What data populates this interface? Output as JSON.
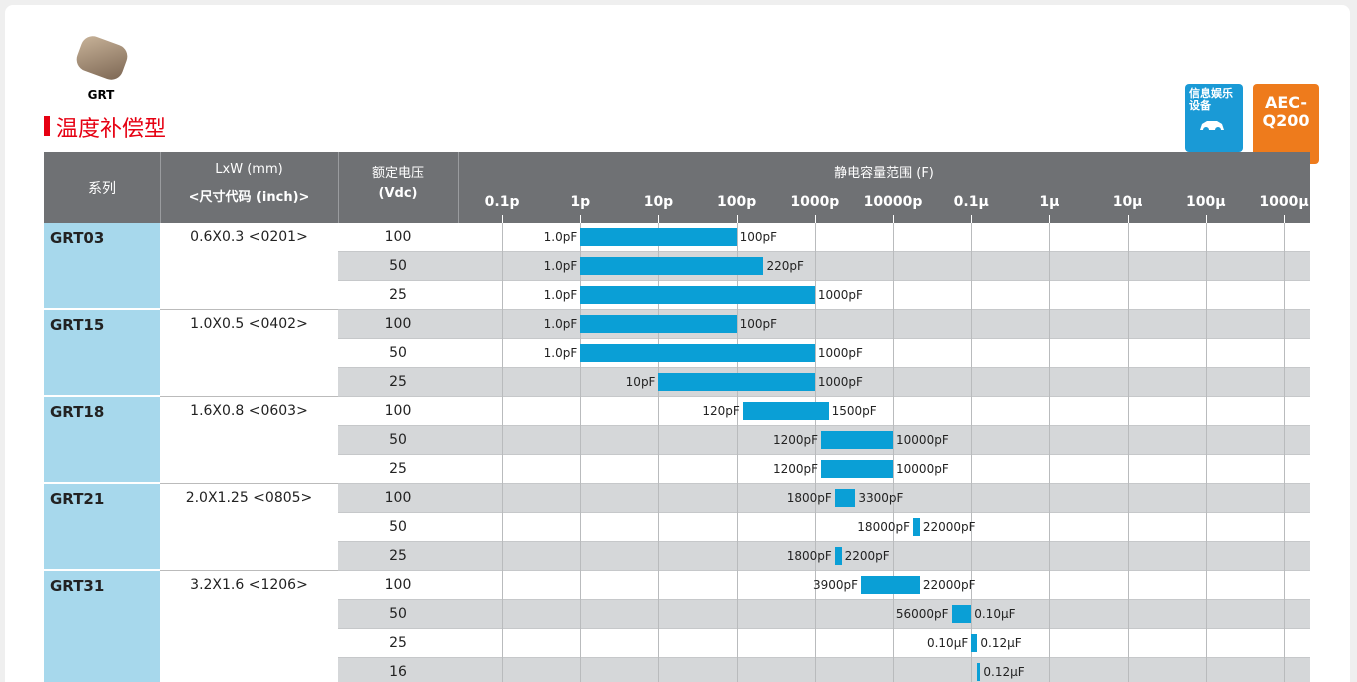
{
  "product": {
    "name": "GRT"
  },
  "title": "温度补偿型",
  "badges": [
    {
      "lines": [
        "信息娱乐",
        "设备"
      ]
    },
    {
      "lines": [
        "AEC-",
        "Q200"
      ]
    }
  ],
  "table": {
    "headers": {
      "series": "系列",
      "size": [
        "LxW (mm)",
        "<尺寸代码 (inch)>"
      ],
      "voltage": [
        "额定电压",
        "(Vdc)"
      ],
      "capacitance": "静电容量范围 (F)"
    },
    "groups": [
      {
        "series": "GRT03",
        "size": "0.6X0.3 <0201>",
        "rows": [
          {
            "voltage": 100,
            "min": 1,
            "max": 100,
            "min_label": "1.0pF",
            "max_label": "100pF"
          },
          {
            "voltage": 50,
            "min": 1,
            "max": 220,
            "min_label": "1.0pF",
            "max_label": "220pF"
          },
          {
            "voltage": 25,
            "min": 1,
            "max": 1000,
            "min_label": "1.0pF",
            "max_label": "1000pF"
          }
        ]
      },
      {
        "series": "GRT15",
        "size": "1.0X0.5 <0402>",
        "rows": [
          {
            "voltage": 100,
            "min": 1,
            "max": 100,
            "min_label": "1.0pF",
            "max_label": "100pF"
          },
          {
            "voltage": 50,
            "min": 1,
            "max": 1000,
            "min_label": "1.0pF",
            "max_label": "1000pF"
          },
          {
            "voltage": 25,
            "min": 10,
            "max": 1000,
            "min_label": "10pF",
            "max_label": "1000pF"
          }
        ]
      },
      {
        "series": "GRT18",
        "size": "1.6X0.8 <0603>",
        "rows": [
          {
            "voltage": 100,
            "min": 120,
            "max": 1500,
            "min_label": "120pF",
            "max_label": "1500pF"
          },
          {
            "voltage": 50,
            "min": 1200,
            "max": 10000,
            "min_label": "1200pF",
            "max_label": "10000pF"
          },
          {
            "voltage": 25,
            "min": 1200,
            "max": 10000,
            "min_label": "1200pF",
            "max_label": "10000pF"
          }
        ]
      },
      {
        "series": "GRT21",
        "size": "2.0X1.25 <0805>",
        "rows": [
          {
            "voltage": 100,
            "min": 1800,
            "max": 3300,
            "min_label": "1800pF",
            "max_label": "3300pF"
          },
          {
            "voltage": 50,
            "min": 18000,
            "max": 22000,
            "min_label": "18000pF",
            "max_label": "22000pF"
          },
          {
            "voltage": 25,
            "min": 1800,
            "max": 2200,
            "min_label": "1800pF",
            "max_label": "2200pF"
          }
        ]
      },
      {
        "series": "GRT31",
        "size": "3.2X1.6 <1206>",
        "rows": [
          {
            "voltage": 100,
            "min": 3900,
            "max": 22000,
            "min_label": "3900pF",
            "max_label": "22000pF"
          },
          {
            "voltage": 50,
            "min": 56000,
            "max": 100000,
            "min_label": "56000pF",
            "max_label": "0.10μF"
          },
          {
            "voltage": 25,
            "min": 100000,
            "max": 120000,
            "min_label": "0.10μF",
            "max_label": "0.12μF"
          },
          {
            "voltage": 16,
            "min": 120000,
            "max": 120000,
            "max_label": "0.12μF"
          }
        ]
      }
    ]
  },
  "axis": {
    "scale": "log",
    "xlim": [
      0.0273,
      2150000000
    ],
    "xticks": [
      {
        "value": 0.1,
        "label": "0.1p"
      },
      {
        "value": 1,
        "label": "1p"
      },
      {
        "value": 10,
        "label": "10p"
      },
      {
        "value": 100,
        "label": "100p"
      },
      {
        "value": 1000,
        "label": "1000p"
      },
      {
        "value": 10000,
        "label": "10000p"
      },
      {
        "value": 100000,
        "label": "0.1μ"
      },
      {
        "value": 1000000,
        "label": "1μ"
      },
      {
        "value": 10000000,
        "label": "10μ"
      },
      {
        "value": 100000000,
        "label": "100μ"
      },
      {
        "value": 1000000000,
        "label": "1000μ"
      }
    ],
    "bar_color": "#0a9fd6"
  }
}
